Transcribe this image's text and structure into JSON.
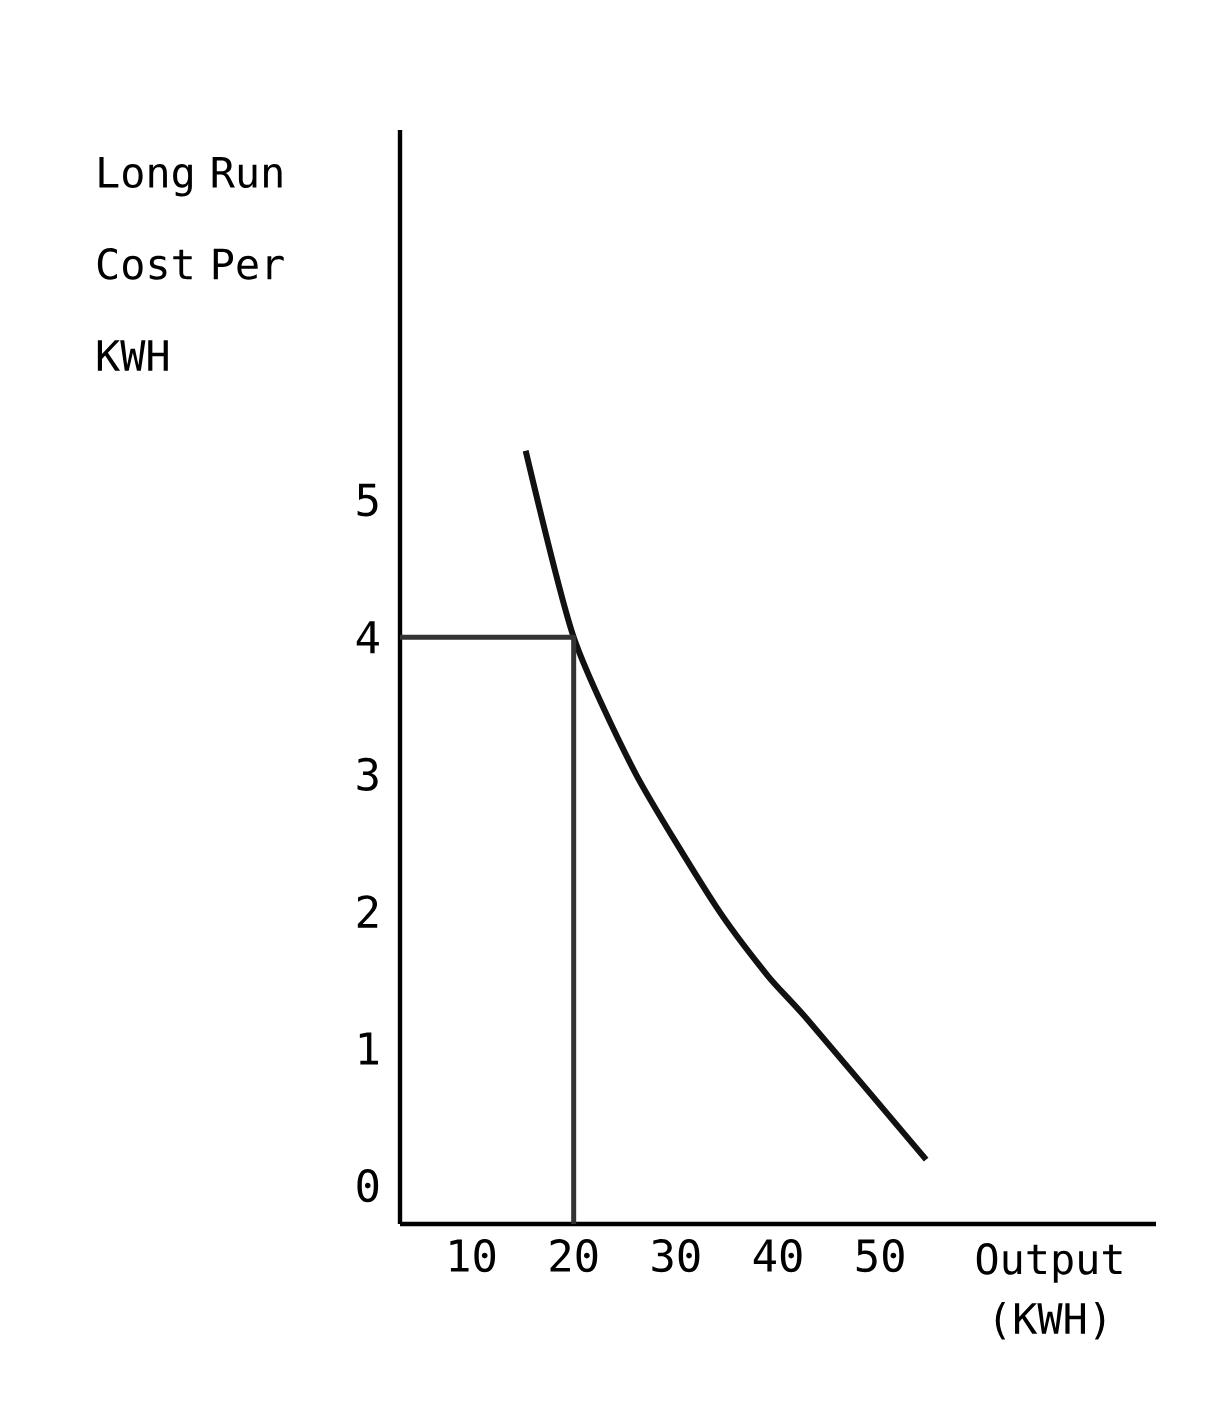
{
  "chart_data": {
    "type": "line",
    "xlabel": "Output (KWH)",
    "ylabel": "Long Run Cost Per KWH",
    "xlim": [
      3,
      77
    ],
    "ylim": [
      -0.28,
      7.7
    ],
    "xticks": [
      10,
      20,
      30,
      40,
      50
    ],
    "yticks": [
      0,
      1,
      2,
      3,
      4,
      5
    ],
    "grid": false,
    "series": [
      {
        "color": "#111111",
        "x": [
          15.3,
          20,
          26.1,
          33.9,
          39,
          42.9,
          54.5
        ],
        "values": [
          5.36,
          4,
          3.0,
          2.04,
          1.53,
          1.21,
          0.19
        ]
      },
      {
        "color": "#333333",
        "x": [
          3,
          20,
          20
        ],
        "values": [
          4,
          4,
          -0.28
        ]
      }
    ]
  }
}
